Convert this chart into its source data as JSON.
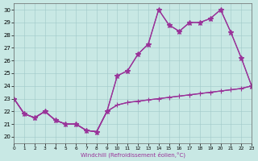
{
  "bg_color": "#c8e8e4",
  "line_color": "#993399",
  "xlabel": "Windchill (Refroidissement éolien,°C)",
  "xlim": [
    0,
    23
  ],
  "ylim": [
    19.5,
    30.5
  ],
  "yticks": [
    20,
    21,
    22,
    23,
    24,
    25,
    26,
    27,
    28,
    29,
    30
  ],
  "xticks": [
    0,
    1,
    2,
    3,
    4,
    5,
    6,
    7,
    8,
    9,
    10,
    11,
    12,
    13,
    14,
    15,
    16,
    17,
    18,
    19,
    20,
    21,
    22,
    23
  ],
  "series": [
    {
      "y": [
        23.0,
        21.8,
        21.5,
        22.0,
        21.3,
        21.0,
        21.0,
        20.5,
        20.4,
        22.0,
        22.5,
        22.7,
        22.8,
        22.9,
        23.0,
        23.1,
        23.2,
        23.3,
        23.4,
        23.5,
        23.6,
        23.7,
        23.8,
        24.0
      ],
      "marker": null,
      "lw": 0.9
    },
    {
      "y": [
        23.0,
        21.8,
        21.5,
        22.0,
        21.3,
        21.0,
        21.0,
        20.5,
        20.4,
        22.0,
        22.5,
        22.7,
        22.8,
        22.9,
        23.0,
        23.1,
        23.2,
        23.3,
        23.4,
        23.5,
        23.6,
        23.7,
        23.8,
        24.0
      ],
      "marker": "+",
      "lw": 0.9
    },
    {
      "y": [
        23.0,
        21.8,
        21.5,
        22.0,
        21.3,
        21.0,
        21.0,
        20.5,
        20.4,
        22.0,
        24.8,
        25.2,
        26.5,
        27.3,
        30.0,
        28.8,
        28.3,
        29.0,
        29.0,
        29.3,
        30.0,
        28.2,
        26.2,
        24.0
      ],
      "marker": "+",
      "lw": 0.9
    },
    {
      "y": [
        23.0,
        21.8,
        21.5,
        22.0,
        21.3,
        21.0,
        21.0,
        20.5,
        20.4,
        22.0,
        24.8,
        25.2,
        26.5,
        27.3,
        30.0,
        28.8,
        28.3,
        29.0,
        29.0,
        29.3,
        30.0,
        28.2,
        26.2,
        24.0
      ],
      "marker": "*",
      "lw": 0.9
    }
  ]
}
